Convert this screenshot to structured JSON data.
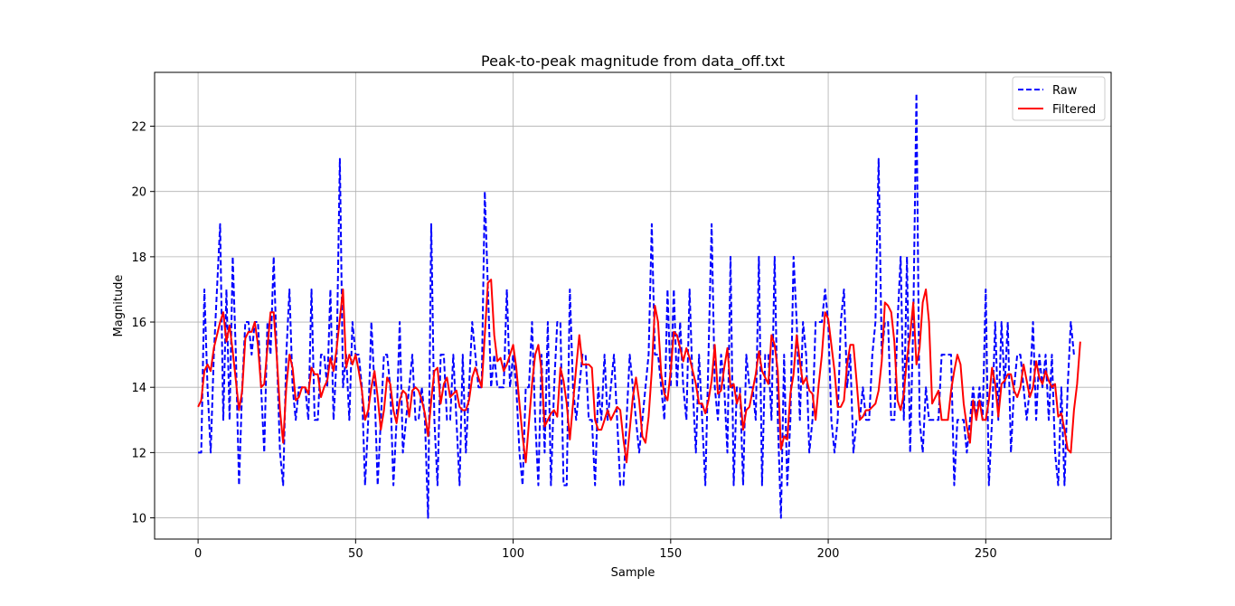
{
  "chart_data": {
    "type": "line",
    "title": "Peak-to-peak magnitude from data_off.txt",
    "xlabel": "Sample",
    "ylabel": "Magnitude",
    "xlim": [
      -13.8,
      289.8
    ],
    "ylim": [
      9.35,
      23.65
    ],
    "xticks": [
      0,
      50,
      100,
      150,
      200,
      250
    ],
    "yticks": [
      10,
      12,
      14,
      16,
      18,
      20,
      22
    ],
    "grid": true,
    "legend_position": "top-right",
    "series": [
      {
        "name": "Raw",
        "color": "#0000ff",
        "style": "dashed",
        "x_start": 0,
        "values": [
          12,
          12,
          17,
          14,
          12,
          15,
          17,
          19,
          13,
          17,
          13,
          18,
          15,
          11,
          14,
          16,
          16,
          15,
          16,
          16,
          14,
          12,
          16,
          15,
          18,
          15,
          12,
          11,
          15,
          17,
          14,
          13,
          14,
          14,
          14,
          13,
          17,
          13,
          13,
          15,
          15,
          14,
          17,
          13,
          15,
          21,
          14,
          15,
          13,
          16,
          15,
          15,
          14,
          11,
          13,
          16,
          14,
          11,
          13,
          15,
          15,
          14,
          11,
          13,
          16,
          12,
          13,
          14,
          15,
          13,
          13,
          14,
          13,
          10,
          19,
          13,
          11,
          15,
          15,
          13,
          13,
          15,
          13,
          11,
          15,
          12,
          14,
          16,
          15,
          14,
          14,
          20,
          17,
          14,
          15,
          14,
          14,
          14,
          17,
          14,
          15,
          14,
          12,
          11,
          14,
          14,
          16,
          13,
          11,
          15,
          12,
          16,
          11,
          14,
          16,
          16,
          11,
          11,
          17,
          14,
          13,
          14,
          15,
          15,
          13,
          13,
          11,
          14,
          13,
          15,
          13,
          14,
          15,
          13,
          11,
          11,
          13,
          15,
          14,
          13,
          12,
          13,
          14,
          15,
          19,
          15,
          15,
          14,
          13,
          17,
          14,
          17,
          14,
          16,
          14,
          13,
          17,
          14,
          12,
          15,
          13,
          11,
          15,
          19,
          14,
          13,
          15,
          14,
          12,
          18,
          11,
          14,
          14,
          11,
          15,
          14,
          14,
          13,
          18,
          11,
          15,
          15,
          13,
          18,
          13,
          10,
          15,
          11,
          13,
          18,
          16,
          13,
          16,
          15,
          12,
          13,
          16,
          16,
          16,
          17,
          16,
          13,
          12,
          13,
          16,
          17,
          14,
          15,
          12,
          13,
          13,
          14,
          13,
          13,
          15,
          16,
          21,
          15,
          16,
          16,
          13,
          13,
          16,
          18,
          13,
          18,
          12,
          16,
          23,
          13,
          12,
          14,
          13,
          13,
          13,
          13,
          15,
          15,
          15,
          15,
          11,
          13,
          13,
          13,
          12,
          13,
          14,
          13,
          14,
          13,
          17,
          11,
          13,
          16,
          13,
          16,
          14,
          16,
          12,
          14,
          15,
          15,
          14,
          13,
          14,
          16,
          13,
          15,
          14,
          15,
          13,
          15,
          12,
          11,
          14,
          11,
          14,
          16,
          15
        ]
      },
      {
        "name": "Filtered",
        "color": "#ff0000",
        "style": "solid",
        "x_start": 0,
        "values": [
          13.4,
          13.6,
          14.5,
          14.7,
          14.5,
          15.2,
          15.6,
          16.0,
          16.3,
          15.4,
          15.9,
          15.1,
          14.2,
          13.3,
          13.9,
          15.5,
          15.7,
          15.7,
          16.0,
          15.3,
          14.0,
          14.1,
          15.2,
          16.3,
          16.3,
          14.9,
          13.3,
          12.3,
          14.0,
          15.0,
          14.6,
          13.6,
          13.7,
          14.0,
          14.0,
          13.8,
          14.6,
          14.4,
          14.4,
          13.7,
          14.0,
          14.2,
          14.9,
          14.5,
          15.2,
          16.1,
          17.0,
          14.6,
          15.0,
          14.7,
          15.0,
          14.5,
          13.9,
          13.0,
          13.3,
          14.0,
          14.5,
          13.7,
          12.7,
          13.3,
          14.3,
          14.1,
          13.3,
          12.9,
          13.6,
          13.9,
          13.8,
          13.1,
          13.9,
          14.0,
          13.9,
          13.6,
          13.2,
          12.5,
          13.6,
          14.5,
          14.6,
          13.5,
          14.1,
          14.3,
          13.7,
          13.8,
          13.9,
          13.4,
          13.3,
          13.3,
          13.6,
          14.3,
          14.6,
          14.3,
          14.0,
          15.6,
          17.2,
          17.3,
          15.6,
          14.8,
          14.9,
          14.5,
          14.7,
          15.0,
          15.3,
          14.6,
          13.5,
          12.5,
          11.7,
          12.9,
          14.1,
          15.0,
          15.3,
          14.5,
          12.8,
          13.0,
          13.2,
          13.3,
          13.1,
          14.6,
          14.2,
          13.5,
          12.4,
          13.5,
          14.6,
          15.6,
          14.7,
          14.7,
          14.7,
          14.6,
          13.0,
          12.7,
          12.7,
          13.0,
          13.3,
          13.0,
          13.2,
          13.4,
          13.3,
          12.4,
          11.7,
          12.7,
          13.7,
          14.3,
          13.6,
          12.5,
          12.3,
          13.1,
          14.5,
          16.5,
          16.0,
          14.4,
          13.8,
          13.6,
          14.5,
          15.7,
          15.6,
          15.2,
          14.8,
          15.2,
          14.9,
          14.5,
          14.1,
          13.5,
          13.5,
          13.2,
          13.6,
          14.2,
          15.3,
          13.8,
          13.9,
          14.6,
          15.2,
          14.0,
          14.1,
          13.5,
          13.8,
          12.7,
          13.3,
          13.4,
          13.9,
          14.4,
          15.1,
          14.5,
          14.3,
          14.1,
          15.6,
          15.3,
          14.5,
          12.1,
          12.5,
          12.4,
          13.8,
          14.4,
          15.6,
          14.8,
          14.1,
          14.3,
          13.9,
          13.8,
          13.0,
          14.1,
          15.0,
          16.3,
          16.1,
          15.3,
          14.5,
          13.4,
          13.4,
          13.6,
          14.7,
          15.3,
          15.3,
          14.2,
          13.0,
          13.1,
          13.3,
          13.3,
          13.4,
          13.5,
          13.9,
          14.8,
          16.6,
          16.5,
          16.3,
          15.4,
          13.6,
          13.3,
          13.8,
          14.9,
          15.6,
          16.6,
          14.7,
          15.2,
          16.6,
          17.0,
          16.0,
          13.5,
          13.7,
          13.9,
          13.0,
          13.0,
          13.0,
          13.9,
          14.5,
          15.0,
          14.7,
          13.5,
          12.8,
          12.3,
          13.6,
          13.0,
          13.6,
          13.0,
          13.0,
          13.6,
          14.6,
          14.1,
          13.1,
          14.1,
          14.2,
          14.4,
          14.4,
          13.9,
          13.7,
          14.0,
          14.7,
          14.2,
          13.7,
          14.0,
          14.8,
          14.3,
          14.1,
          14.5,
          14.2,
          14.0,
          14.1,
          13.1,
          13.2,
          12.7,
          12.1,
          12.0,
          13.3,
          14.1,
          15.4
        ]
      }
    ]
  }
}
